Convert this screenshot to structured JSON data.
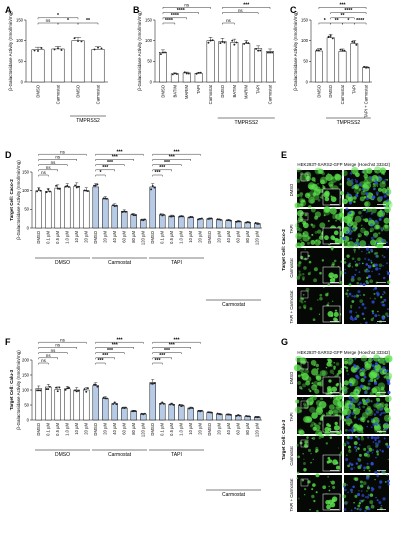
{
  "figure": {
    "panel_labels": [
      "A",
      "B",
      "C",
      "D",
      "E",
      "F",
      "G"
    ]
  },
  "chart_data": [
    {
      "panel": "A",
      "type": "bar",
      "ylabel": "β-Galactosidase Activity (nmol/min/mg)",
      "ylim": [
        0,
        150
      ],
      "yticks": [
        0,
        50,
        100,
        150
      ],
      "categories": [
        "DMSO",
        "Carmostat",
        "DMSO",
        "Carmostat"
      ],
      "values": [
        78,
        80,
        100,
        79
      ],
      "fill": [
        "white",
        "white",
        "white",
        "white"
      ],
      "group_labels": [
        {
          "text": "TMPRSS2",
          "from": 2,
          "to": 3
        }
      ],
      "brackets": [
        {
          "from": 0,
          "to": 2,
          "label": "*",
          "level": 2
        },
        {
          "from": 0,
          "to": 1,
          "label": "ns",
          "level": 1
        },
        {
          "from": 1,
          "to": 2,
          "label": "*",
          "level": 1
        },
        {
          "from": 2,
          "to": 3,
          "label": "**",
          "level": 1
        }
      ]
    },
    {
      "panel": "B",
      "type": "bar",
      "ylabel": "β-Galactosidase Activity (nmol/min/mg)",
      "ylim": [
        0,
        150
      ],
      "yticks": [
        0,
        50,
        100,
        150
      ],
      "categories": [
        "DMSO",
        "BATIM",
        "MARIM",
        "TAPI",
        "Carmostat",
        "DMSO",
        "BATIM",
        "MARIM",
        "TAPI",
        "Carmostat"
      ],
      "values": [
        72,
        20,
        22,
        21,
        100,
        98,
        96,
        93,
        81,
        74
      ],
      "fill": [
        "white",
        "white",
        "white",
        "white",
        "white",
        "white",
        "white",
        "white",
        "white",
        "white"
      ],
      "group_labels": [
        {
          "text": "TMPRSS2",
          "from": 5,
          "to": 9
        }
      ],
      "brackets": [
        {
          "from": 0,
          "to": 4,
          "label": "ns",
          "level": 4
        },
        {
          "from": 0,
          "to": 3,
          "label": "****",
          "level": 3
        },
        {
          "from": 0,
          "to": 2,
          "label": "****",
          "level": 2
        },
        {
          "from": 0,
          "to": 1,
          "label": "****",
          "level": 1
        },
        {
          "from": 5,
          "to": 9,
          "label": "***",
          "level": 4
        },
        {
          "from": 5,
          "to": 8,
          "label": "ns",
          "level": 3
        },
        {
          "from": 5,
          "to": 6,
          "label": "ns",
          "level": 1
        }
      ]
    },
    {
      "panel": "C",
      "type": "bar",
      "ylabel": "β-Galactosidase Activity (nmol/min/mg)",
      "ylim": [
        0,
        150
      ],
      "yticks": [
        0,
        50,
        100,
        150
      ],
      "categories": [
        "DMSO",
        "DMSO",
        "Carmostat",
        "TAPI",
        "TAPI + Carmostat"
      ],
      "values": [
        75,
        107,
        74,
        93,
        35
      ],
      "fill": [
        "white",
        "white",
        "white",
        "white",
        "white"
      ],
      "group_labels": [
        {
          "text": "TMPRSS2",
          "from": 1,
          "to": 4
        }
      ],
      "brackets": [
        {
          "from": 0,
          "to": 4,
          "label": "***",
          "level": 4
        },
        {
          "from": 1,
          "to": 4,
          "label": "****",
          "level": 3
        },
        {
          "from": 1,
          "to": 3,
          "label": "**",
          "level": 2
        },
        {
          "from": 0,
          "to": 1,
          "label": "*",
          "level": 1
        },
        {
          "from": 1,
          "to": 2,
          "label": "**",
          "level": 1
        },
        {
          "from": 2,
          "to": 3,
          "label": "*",
          "level": 1
        },
        {
          "from": 3,
          "to": 4,
          "label": "****",
          "level": 1
        }
      ]
    },
    {
      "panel": "D",
      "type": "bar",
      "ylabel_bold": "Target Cell: Caco-2",
      "ylabel": "β-Galactosidase Activity (nmol/min/mg)",
      "ylim": [
        0,
        150
      ],
      "yticks": [
        0,
        50,
        100,
        150
      ],
      "categories": [
        "DMSO",
        "0.1 µM",
        "0.5 µM",
        "1.0 µM",
        "10 µM",
        "20 µM",
        "DMSO",
        "20 µM",
        "40 µM",
        "60 µM",
        "80 µM",
        "120 µM",
        "DMSO",
        "0.1 µM",
        "0.5 µM",
        "1.0 µM",
        "10 µM",
        "20 µM",
        "DMSO",
        "20 µM",
        "40 µM",
        "60 µM",
        "80 µM",
        "120 µM"
      ],
      "values": [
        100,
        98,
        107,
        110,
        112,
        100,
        110,
        78,
        60,
        45,
        36,
        22,
        110,
        35,
        32,
        30,
        28,
        24,
        25,
        22,
        20,
        18,
        15,
        12
      ],
      "fill": [
        "white",
        "white",
        "white",
        "white",
        "white",
        "white",
        "blue",
        "blue",
        "blue",
        "blue",
        "blue",
        "blue",
        "blue",
        "blue",
        "blue",
        "blue",
        "blue",
        "blue",
        "blue",
        "blue",
        "blue",
        "blue",
        "blue",
        "blue"
      ],
      "group_labels": [
        {
          "text": "DMSO",
          "from": 0,
          "to": 5
        },
        {
          "text": "Carmostat",
          "from": 6,
          "to": 11
        },
        {
          "text": "TAPI",
          "from": 12,
          "to": 17
        }
      ],
      "sub_group_labels": [
        {
          "text": "Carmostat",
          "from": 18,
          "to": 23
        }
      ],
      "brackets": [
        {
          "from": 0,
          "to": 5,
          "label": "ns",
          "level": 5
        },
        {
          "from": 0,
          "to": 4,
          "label": "ns",
          "level": 4
        },
        {
          "from": 0,
          "to": 3,
          "label": "ns",
          "level": 3
        },
        {
          "from": 0,
          "to": 2,
          "label": "ns",
          "level": 2
        },
        {
          "from": 0,
          "to": 1,
          "label": "ns",
          "level": 1
        },
        {
          "from": 6,
          "to": 11,
          "label": "***",
          "level": 5
        },
        {
          "from": 6,
          "to": 10,
          "label": "***",
          "level": 4
        },
        {
          "from": 6,
          "to": 9,
          "label": "***",
          "level": 3
        },
        {
          "from": 6,
          "to": 8,
          "label": "***",
          "level": 2
        },
        {
          "from": 6,
          "to": 7,
          "label": "*",
          "level": 1
        },
        {
          "from": 12,
          "to": 17,
          "label": "***",
          "level": 5
        },
        {
          "from": 12,
          "to": 16,
          "label": "***",
          "level": 4
        },
        {
          "from": 12,
          "to": 15,
          "label": "***",
          "level": 3
        },
        {
          "from": 12,
          "to": 14,
          "label": "***",
          "level": 2
        },
        {
          "from": 12,
          "to": 13,
          "label": "***",
          "level": 1
        }
      ]
    },
    {
      "panel": "F",
      "type": "bar",
      "ylabel_bold": "Target Cell: Calu-3",
      "ylabel": "β-Galactosidase Activity (nmol/min/mg)",
      "ylim": [
        0,
        200
      ],
      "yticks": [
        0,
        50,
        100,
        150,
        200
      ],
      "categories": [
        "DMSO",
        "0.1 µM",
        "0.5 µM",
        "1.0 µM",
        "10 µM",
        "20 µM",
        "DMSO",
        "20 µM",
        "40 µM",
        "60 µM",
        "80 µM",
        "120 µM",
        "DMSO",
        "0.1 µM",
        "0.5 µM",
        "1.0 µM",
        "10 µM",
        "20 µM",
        "DMSO",
        "20 µM",
        "40 µM",
        "60 µM",
        "80 µM",
        "120 µM"
      ],
      "values": [
        105,
        110,
        102,
        104,
        100,
        100,
        115,
        72,
        55,
        40,
        30,
        20,
        125,
        55,
        52,
        48,
        40,
        30,
        25,
        20,
        18,
        15,
        12,
        10
      ],
      "fill": [
        "white",
        "white",
        "white",
        "white",
        "white",
        "white",
        "blue",
        "blue",
        "blue",
        "blue",
        "blue",
        "blue",
        "blue",
        "blue",
        "blue",
        "blue",
        "blue",
        "blue",
        "blue",
        "blue",
        "blue",
        "blue",
        "blue",
        "blue"
      ],
      "group_labels": [
        {
          "text": "DMSO",
          "from": 0,
          "to": 5
        },
        {
          "text": "Carmostat",
          "from": 6,
          "to": 11
        },
        {
          "text": "TAPI",
          "from": 12,
          "to": 17
        }
      ],
      "sub_group_labels": [
        {
          "text": "Carmostat",
          "from": 18,
          "to": 23
        }
      ],
      "brackets": [
        {
          "from": 0,
          "to": 5,
          "label": "ns",
          "level": 5
        },
        {
          "from": 0,
          "to": 4,
          "label": "ns",
          "level": 4
        },
        {
          "from": 0,
          "to": 3,
          "label": "ns",
          "level": 3
        },
        {
          "from": 0,
          "to": 2,
          "label": "ns",
          "level": 2
        },
        {
          "from": 0,
          "to": 1,
          "label": "ns",
          "level": 1
        },
        {
          "from": 6,
          "to": 11,
          "label": "***",
          "level": 5
        },
        {
          "from": 6,
          "to": 10,
          "label": "***",
          "level": 4
        },
        {
          "from": 6,
          "to": 9,
          "label": "***",
          "level": 3
        },
        {
          "from": 6,
          "to": 8,
          "label": "***",
          "level": 2
        },
        {
          "from": 6,
          "to": 7,
          "label": "***",
          "level": 1
        },
        {
          "from": 12,
          "to": 17,
          "label": "***",
          "level": 5
        },
        {
          "from": 12,
          "to": 16,
          "label": "***",
          "level": 4
        },
        {
          "from": 12,
          "to": 15,
          "label": "***",
          "level": 3
        },
        {
          "from": 12,
          "to": 14,
          "label": "***",
          "level": 2
        },
        {
          "from": 12,
          "to": 13,
          "label": "***",
          "level": 1
        }
      ]
    }
  ],
  "micrographs": [
    {
      "panel": "E",
      "header_left": "HEK293T-SARS2-GFP",
      "header_right": "Merge (Hoechst 33342)",
      "side_label": "Target Cell: Caco-2",
      "rows": [
        "DMSO",
        "TAPI",
        "Carmostat",
        "TAPI + Carmostat"
      ],
      "green_density": [
        0.95,
        0.85,
        0.35,
        0.15
      ]
    },
    {
      "panel": "G",
      "header_left": "HEK293T-SARS2-GFP",
      "header_right": "Merge (Hoechst 33342)",
      "side_label": "Target Cell: Calu-3",
      "rows": [
        "DMSO",
        "TAPI",
        "Carmostat",
        "TAPI + Carmostat"
      ],
      "green_density": [
        0.95,
        0.9,
        0.3,
        0.15
      ]
    }
  ],
  "colors": {
    "bar_blue": "#b8cbe6",
    "bar_white": "#ffffff",
    "dot": "#222222",
    "cell_green": "#59e04a",
    "nuclei_blue": "#2f4fd8",
    "image_bg": "#050805"
  }
}
